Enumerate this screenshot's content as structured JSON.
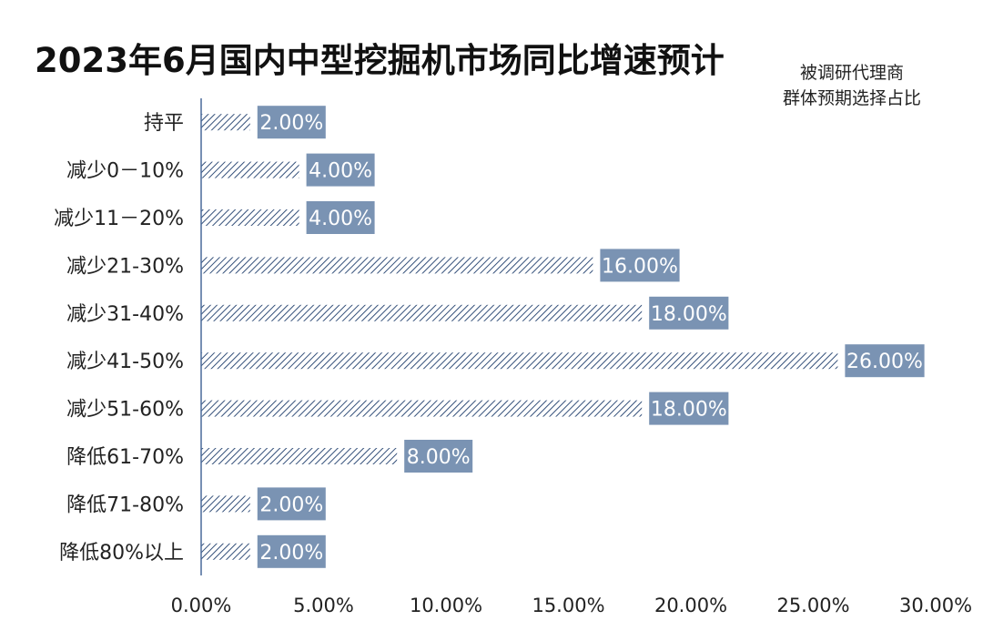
{
  "chart_data": {
    "type": "bar",
    "orientation": "horizontal",
    "title": "2023年6月国内中型挖掘机市场同比增速预计",
    "note_lines": [
      "被调研代理商",
      "群体预期选择占比"
    ],
    "categories": [
      "持平",
      "减少0－10%",
      "减少11－20%",
      "减少21-30%",
      "减少31-40%",
      "减少41-50%",
      "减少51-60%",
      "降低61-70%",
      "降低71-80%",
      "降低80%以上"
    ],
    "values": [
      2,
      4,
      4,
      16,
      18,
      26,
      18,
      8,
      2,
      2
    ],
    "data_labels": [
      "2.00%",
      "4.00%",
      "4.00%",
      "16.00%",
      "18.00%",
      "26.00%",
      "18.00%",
      "8.00%",
      "2.00%",
      "2.00%"
    ],
    "xlim": [
      0,
      30
    ],
    "x_ticks": [
      0,
      5,
      10,
      15,
      20,
      25,
      30
    ],
    "x_tick_labels": [
      "0.00%",
      "5.00%",
      "10.00%",
      "15.00%",
      "20.00%",
      "25.00%",
      "30.00%"
    ],
    "grid": false,
    "colors": {
      "bar_hatch": "#34507a",
      "label_box": "#7a93b3",
      "axis": "#4a6a9a"
    }
  }
}
